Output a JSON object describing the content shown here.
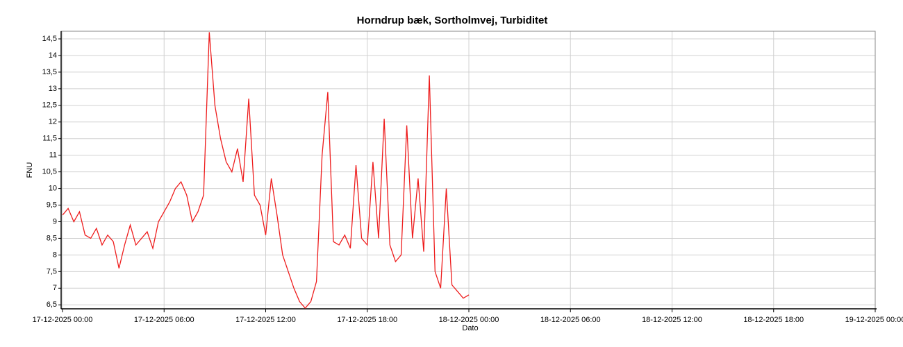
{
  "chart_data": {
    "type": "line",
    "title": "Horndrup bæk, Sortholmvej, Turbiditet",
    "xlabel": "Dato",
    "ylabel": "FNU",
    "x": [
      "17-12-2025 00:00",
      "17-12-2025 00:20",
      "17-12-2025 00:40",
      "17-12-2025 01:00",
      "17-12-2025 01:20",
      "17-12-2025 01:40",
      "17-12-2025 02:00",
      "17-12-2025 02:20",
      "17-12-2025 02:40",
      "17-12-2025 03:00",
      "17-12-2025 03:20",
      "17-12-2025 03:40",
      "17-12-2025 04:00",
      "17-12-2025 04:20",
      "17-12-2025 04:40",
      "17-12-2025 05:00",
      "17-12-2025 05:20",
      "17-12-2025 05:40",
      "17-12-2025 06:00",
      "17-12-2025 06:20",
      "17-12-2025 06:40",
      "17-12-2025 07:00",
      "17-12-2025 07:20",
      "17-12-2025 07:40",
      "17-12-2025 08:00",
      "17-12-2025 08:20",
      "17-12-2025 08:40",
      "17-12-2025 09:00",
      "17-12-2025 09:20",
      "17-12-2025 09:40",
      "17-12-2025 10:00",
      "17-12-2025 10:20",
      "17-12-2025 10:40",
      "17-12-2025 11:00",
      "17-12-2025 11:20",
      "17-12-2025 11:40",
      "17-12-2025 12:00",
      "17-12-2025 12:20",
      "17-12-2025 12:40",
      "17-12-2025 13:00",
      "17-12-2025 13:20",
      "17-12-2025 13:40",
      "17-12-2025 14:00",
      "17-12-2025 14:20",
      "17-12-2025 14:40",
      "17-12-2025 15:00",
      "17-12-2025 15:20",
      "17-12-2025 15:40",
      "17-12-2025 16:00",
      "17-12-2025 16:20",
      "17-12-2025 16:40",
      "17-12-2025 17:00",
      "17-12-2025 17:20",
      "17-12-2025 17:40",
      "17-12-2025 18:00",
      "17-12-2025 18:20",
      "17-12-2025 18:40",
      "17-12-2025 19:00",
      "17-12-2025 19:20",
      "17-12-2025 19:40",
      "17-12-2025 20:00",
      "17-12-2025 20:20",
      "17-12-2025 20:40",
      "17-12-2025 21:00",
      "17-12-2025 21:20",
      "17-12-2025 21:40",
      "17-12-2025 22:00",
      "17-12-2025 22:20",
      "17-12-2025 22:40",
      "17-12-2025 23:00",
      "17-12-2025 23:20",
      "17-12-2025 23:40",
      "18-12-2025 00:00"
    ],
    "series": [
      {
        "color": "#ee1c1c",
        "values": [
          9.2,
          9.4,
          9.0,
          9.3,
          8.6,
          8.5,
          8.8,
          8.3,
          8.6,
          8.4,
          7.6,
          8.3,
          8.9,
          8.3,
          8.5,
          8.7,
          8.2,
          9.0,
          9.3,
          9.6,
          10.0,
          10.2,
          9.8,
          9.0,
          9.3,
          9.8,
          14.7,
          12.5,
          11.5,
          10.8,
          10.5,
          11.2,
          10.2,
          12.7,
          9.8,
          9.5,
          8.6,
          10.3,
          9.2,
          8.0,
          7.5,
          7.0,
          6.6,
          6.4,
          6.6,
          7.2,
          11.0,
          12.9,
          8.4,
          8.3,
          8.6,
          8.2,
          10.7,
          8.5,
          8.3,
          10.8,
          8.5,
          12.1,
          8.3,
          7.8,
          8.0,
          11.9,
          8.5,
          10.3,
          8.1,
          13.4,
          7.5,
          7.0,
          10.0,
          7.1,
          6.9,
          6.7,
          6.8
        ]
      }
    ],
    "xlim": [
      "17-12-2025 00:00",
      "19-12-2025 00:00"
    ],
    "xticks": [
      "17-12-2025 00:00",
      "17-12-2025 06:00",
      "17-12-2025 12:00",
      "17-12-2025 18:00",
      "18-12-2025 00:00",
      "18-12-2025 06:00",
      "18-12-2025 12:00",
      "18-12-2025 18:00",
      "19-12-2025 00:00"
    ],
    "ylim": [
      6.38,
      14.73
    ],
    "yticks": [
      {
        "value": 6.5,
        "label": "6,5"
      },
      7,
      {
        "value": 7.5,
        "label": "7,5"
      },
      8,
      {
        "value": 8.5,
        "label": "8,5"
      },
      9,
      {
        "value": 9.5,
        "label": "9,5"
      },
      10,
      {
        "value": 10.5,
        "label": "10,5"
      },
      11,
      {
        "value": 11.5,
        "label": "11,5"
      },
      12,
      {
        "value": 12.5,
        "label": "12,5"
      },
      13,
      {
        "value": 13.5,
        "label": "13,5"
      },
      14,
      {
        "value": 14.5,
        "label": "14,5"
      }
    ],
    "grid": true
  }
}
